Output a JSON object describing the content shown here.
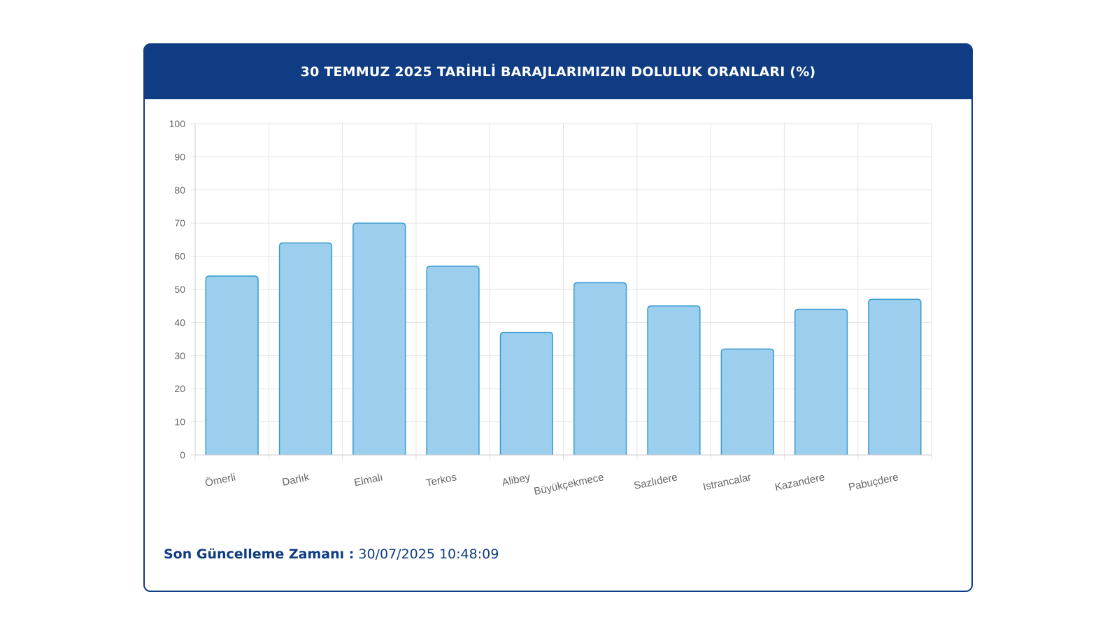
{
  "header": {
    "title": "30 TEMMUZ 2025 TARİHLİ BARAJLARIMIZIN DOLULUK ORANLARI (%)"
  },
  "footer": {
    "update_label": "Son Güncelleme Zamanı :",
    "update_value": "30/07/2025 10:48:09"
  },
  "colors": {
    "header_bg": "#0f3c83",
    "bar_fill": "#9ccfed",
    "bar_stroke": "#3a9bd1",
    "grid": "#e3e3e3",
    "text_dark": "#0f3c83"
  },
  "chart_data": {
    "type": "bar",
    "title": "30 TEMMUZ 2025 TARİHLİ BARAJLARIMIZIN DOLULUK ORANLARI (%)",
    "categories": [
      "Ömerli",
      "Darlık",
      "Elmalı",
      "Terkos",
      "Alibey",
      "Büyükçekmece",
      "Sazlıdere",
      "Istrancalar",
      "Kazandere",
      "Pabuçdere"
    ],
    "values": [
      54,
      64,
      70,
      57,
      37,
      52,
      45,
      32,
      44,
      47
    ],
    "ylim": [
      0,
      100
    ],
    "yticks": [
      0,
      10,
      20,
      30,
      40,
      50,
      60,
      70,
      80,
      90,
      100
    ],
    "grid": true,
    "legend": "none"
  }
}
